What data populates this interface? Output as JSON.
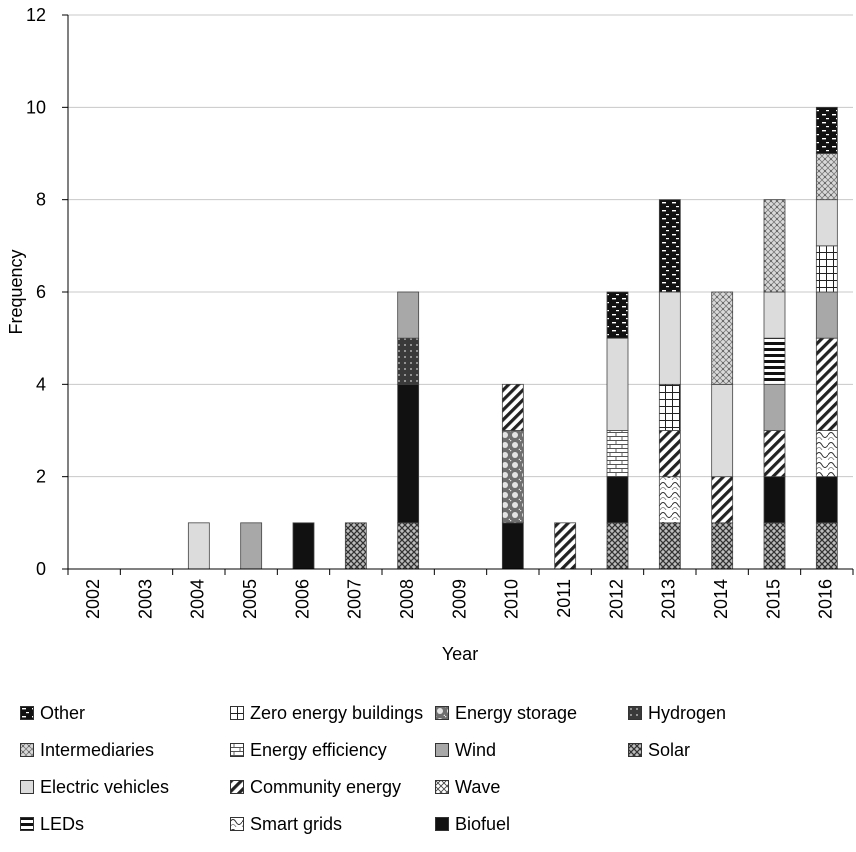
{
  "chart_data": {
    "type": "bar",
    "stacked": true,
    "xlabel": "Year",
    "ylabel": "Frequency",
    "ylim": [
      0,
      12
    ],
    "yticks": [
      0,
      2,
      4,
      6,
      8,
      10,
      12
    ],
    "grid": "horizontal",
    "legend_position": "bottom",
    "categories": [
      "2002",
      "2003",
      "2004",
      "2005",
      "2006",
      "2007",
      "2008",
      "2009",
      "2010",
      "2011",
      "2012",
      "2013",
      "2014",
      "2015",
      "2016"
    ],
    "series": [
      {
        "name": "Solar",
        "pattern": "crosshatch-dense",
        "values": [
          0,
          0,
          0,
          0,
          0,
          1,
          1,
          0,
          0,
          0,
          1,
          1,
          1,
          1,
          1
        ]
      },
      {
        "name": "Biofuel",
        "pattern": "solid-black",
        "values": [
          0,
          0,
          0,
          0,
          1,
          0,
          3,
          0,
          1,
          0,
          1,
          0,
          0,
          1,
          1
        ]
      },
      {
        "name": "Hydrogen",
        "pattern": "dots-dark",
        "values": [
          0,
          0,
          0,
          0,
          0,
          0,
          1,
          0,
          0,
          0,
          0,
          0,
          0,
          0,
          0
        ]
      },
      {
        "name": "Smart grids",
        "pattern": "waves",
        "values": [
          0,
          0,
          0,
          0,
          0,
          0,
          0,
          0,
          0,
          0,
          0,
          1,
          0,
          0,
          1
        ]
      },
      {
        "name": "Energy efficiency",
        "pattern": "brick",
        "values": [
          0,
          0,
          0,
          0,
          0,
          0,
          0,
          0,
          0,
          0,
          1,
          0,
          0,
          0,
          0
        ]
      },
      {
        "name": "Energy storage",
        "pattern": "circles",
        "values": [
          0,
          0,
          0,
          0,
          0,
          0,
          0,
          0,
          2,
          0,
          0,
          0,
          0,
          0,
          0
        ]
      },
      {
        "name": "Community energy",
        "pattern": "diagonal",
        "values": [
          0,
          0,
          0,
          0,
          0,
          0,
          0,
          0,
          1,
          1,
          0,
          1,
          1,
          1,
          2
        ]
      },
      {
        "name": "Wind",
        "pattern": "gray-medium",
        "values": [
          0,
          0,
          0,
          1,
          0,
          0,
          1,
          0,
          0,
          0,
          0,
          0,
          0,
          1,
          1
        ]
      },
      {
        "name": "LEDs",
        "pattern": "horizontal-lines",
        "values": [
          0,
          0,
          0,
          0,
          0,
          0,
          0,
          0,
          0,
          0,
          0,
          0,
          0,
          1,
          0
        ]
      },
      {
        "name": "Zero energy buildings",
        "pattern": "grid",
        "values": [
          0,
          0,
          0,
          0,
          0,
          0,
          0,
          0,
          0,
          0,
          0,
          1,
          0,
          0,
          1
        ]
      },
      {
        "name": "Electric vehicles",
        "pattern": "gray-light",
        "values": [
          0,
          0,
          1,
          0,
          0,
          0,
          0,
          0,
          0,
          0,
          2,
          2,
          2,
          1,
          1
        ]
      },
      {
        "name": "Intermediaries",
        "pattern": "speckle",
        "values": [
          0,
          0,
          0,
          0,
          0,
          0,
          0,
          0,
          0,
          0,
          0,
          0,
          2,
          2,
          1
        ]
      },
      {
        "name": "Other",
        "pattern": "black-dashes",
        "values": [
          0,
          0,
          0,
          0,
          0,
          0,
          0,
          0,
          0,
          0,
          1,
          2,
          0,
          0,
          1
        ]
      }
    ]
  },
  "legend": {
    "items": [
      {
        "label": "Other",
        "pattern": "black-dashes"
      },
      {
        "label": "Zero energy buildings",
        "pattern": "grid"
      },
      {
        "label": "Energy storage",
        "pattern": "circles"
      },
      {
        "label": "Hydrogen",
        "pattern": "dots-dark"
      },
      {
        "label": "Intermediaries",
        "pattern": "speckle"
      },
      {
        "label": "Energy efficiency",
        "pattern": "brick"
      },
      {
        "label": "Wind",
        "pattern": "gray-medium"
      },
      {
        "label": "Solar",
        "pattern": "crosshatch-dense"
      },
      {
        "label": "Electric vehicles",
        "pattern": "gray-light"
      },
      {
        "label": "Community energy",
        "pattern": "diagonal"
      },
      {
        "label": "Wave",
        "pattern": "wave-check"
      },
      {
        "label": "LEDs",
        "pattern": "horizontal-lines"
      },
      {
        "label": "Smart grids",
        "pattern": "waves"
      },
      {
        "label": "Biofuel",
        "pattern": "solid-black"
      }
    ]
  }
}
